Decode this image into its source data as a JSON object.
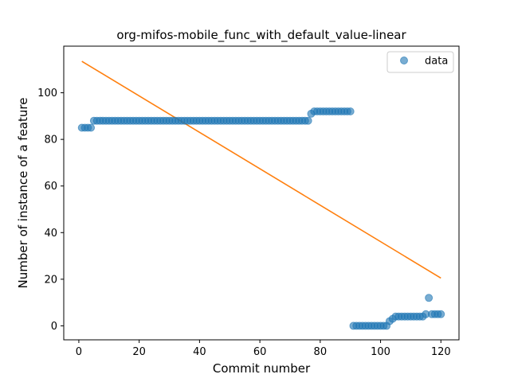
{
  "chart_data": {
    "type": "scatter",
    "title": "org-mifos-mobile_func_with_default_value-linear",
    "xlabel": "Commit number",
    "ylabel": "Number of instance of a feature",
    "xlim": [
      -5,
      126
    ],
    "ylim": [
      -6,
      120
    ],
    "xticks": [
      0,
      20,
      40,
      60,
      80,
      100,
      120
    ],
    "yticks": [
      0,
      20,
      40,
      60,
      80,
      100
    ],
    "grid": false,
    "legend": {
      "position": "top-right",
      "entries": [
        "data"
      ]
    },
    "colors": {
      "data": "#1f77b4",
      "fit": "#ff7f0e"
    },
    "series": [
      {
        "name": "data",
        "kind": "scatter",
        "segments": [
          {
            "x_from": 1,
            "x_to": 4,
            "y": 85
          },
          {
            "x_from": 5,
            "x_to": 76,
            "y": 88
          },
          {
            "x_from": 77,
            "x_to": 77,
            "y": 91
          },
          {
            "x_from": 78,
            "x_to": 90,
            "y": 92
          },
          {
            "x_from": 91,
            "x_to": 102,
            "y": 0
          },
          {
            "x_from": 103,
            "x_to": 103,
            "y": 2
          },
          {
            "x_from": 104,
            "x_to": 104,
            "y": 3
          },
          {
            "x_from": 105,
            "x_to": 114,
            "y": 4
          },
          {
            "x_from": 115,
            "x_to": 115,
            "y": 5
          },
          {
            "x_from": 116,
            "x_to": 116,
            "y": 12
          },
          {
            "x_from": 117,
            "x_to": 120,
            "y": 5
          }
        ]
      },
      {
        "kind": "line",
        "x": [
          1,
          120
        ],
        "y": [
          113.5,
          20.5
        ]
      }
    ]
  }
}
